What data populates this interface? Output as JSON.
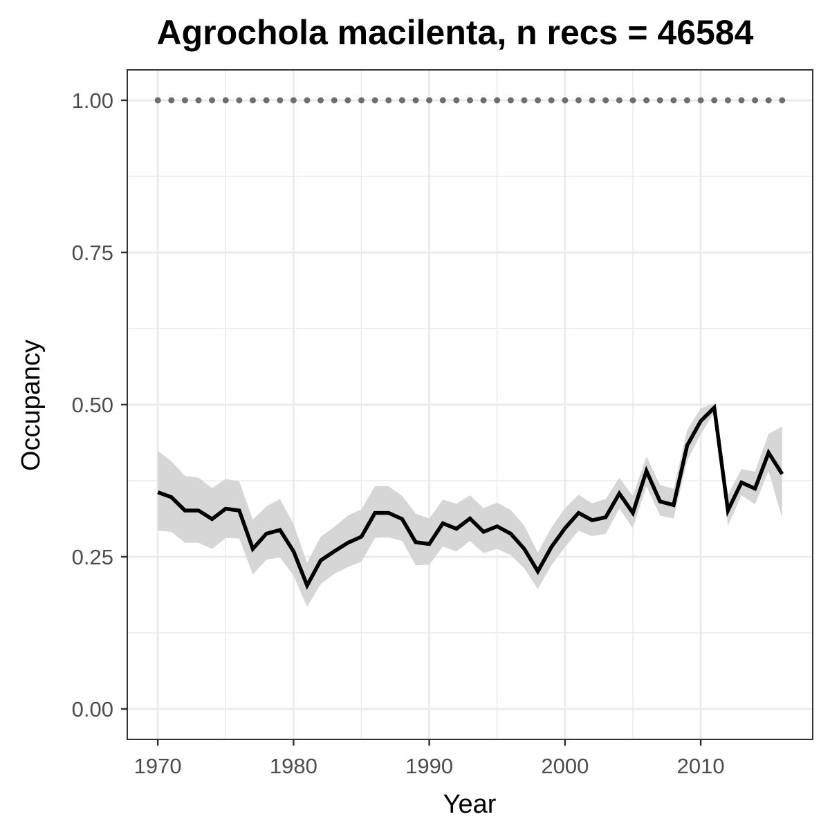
{
  "chart_data": {
    "type": "line",
    "title": "Agrochola macilenta, n recs = 46584",
    "xlabel": "Year",
    "ylabel": "Occupancy",
    "xlim": [
      1967.75,
      2018.25
    ],
    "ylim": [
      -0.05,
      1.05
    ],
    "x_ticks": [
      1970,
      1980,
      1990,
      2000,
      2010
    ],
    "x_tick_labels": [
      "1970",
      "1980",
      "1990",
      "2000",
      "2010"
    ],
    "y_ticks": [
      0.0,
      0.25,
      0.5,
      0.75,
      1.0
    ],
    "y_tick_labels": [
      "0.00",
      "0.25",
      "0.50",
      "0.75",
      "1.00"
    ],
    "grid": true,
    "legend": "none",
    "colors": {
      "line": "#000000",
      "ribbon": "#d6d6d6",
      "reference_points": "#6e6e6e",
      "grid": "#ebebeb",
      "panel_border": "#333333"
    },
    "x": [
      1970,
      1971,
      1972,
      1973,
      1974,
      1975,
      1976,
      1977,
      1978,
      1979,
      1980,
      1981,
      1982,
      1983,
      1984,
      1985,
      1986,
      1987,
      1988,
      1989,
      1990,
      1991,
      1992,
      1993,
      1994,
      1995,
      1996,
      1997,
      1998,
      1999,
      2000,
      2001,
      2002,
      2003,
      2004,
      2005,
      2006,
      2007,
      2008,
      2009,
      2010,
      2011,
      2012,
      2013,
      2014,
      2015,
      2016
    ],
    "series": [
      {
        "role": "mean",
        "values": [
          0.356,
          0.348,
          0.326,
          0.326,
          0.312,
          0.329,
          0.326,
          0.263,
          0.288,
          0.294,
          0.259,
          0.203,
          0.244,
          0.259,
          0.273,
          0.283,
          0.322,
          0.322,
          0.312,
          0.274,
          0.271,
          0.305,
          0.296,
          0.313,
          0.291,
          0.3,
          0.288,
          0.263,
          0.226,
          0.266,
          0.297,
          0.322,
          0.31,
          0.315,
          0.354,
          0.322,
          0.391,
          0.341,
          0.335,
          0.433,
          0.473,
          0.495,
          0.326,
          0.372,
          0.362,
          0.421,
          0.386
        ]
      },
      {
        "role": "upper",
        "values": [
          0.424,
          0.407,
          0.383,
          0.38,
          0.363,
          0.378,
          0.374,
          0.311,
          0.333,
          0.345,
          0.304,
          0.24,
          0.283,
          0.299,
          0.318,
          0.328,
          0.366,
          0.366,
          0.35,
          0.321,
          0.313,
          0.344,
          0.337,
          0.351,
          0.33,
          0.339,
          0.327,
          0.301,
          0.257,
          0.298,
          0.33,
          0.352,
          0.338,
          0.345,
          0.38,
          0.35,
          0.415,
          0.368,
          0.362,
          0.458,
          0.494,
          0.502,
          0.352,
          0.394,
          0.39,
          0.452,
          0.464
        ]
      },
      {
        "role": "lower",
        "values": [
          0.293,
          0.291,
          0.273,
          0.273,
          0.263,
          0.281,
          0.28,
          0.221,
          0.245,
          0.249,
          0.219,
          0.168,
          0.205,
          0.222,
          0.233,
          0.242,
          0.281,
          0.282,
          0.276,
          0.236,
          0.237,
          0.267,
          0.259,
          0.276,
          0.256,
          0.263,
          0.253,
          0.231,
          0.197,
          0.236,
          0.266,
          0.293,
          0.284,
          0.288,
          0.329,
          0.297,
          0.366,
          0.318,
          0.313,
          0.408,
          0.451,
          0.487,
          0.301,
          0.351,
          0.336,
          0.391,
          0.313
        ]
      },
      {
        "role": "reference",
        "values": [
          1,
          1,
          1,
          1,
          1,
          1,
          1,
          1,
          1,
          1,
          1,
          1,
          1,
          1,
          1,
          1,
          1,
          1,
          1,
          1,
          1,
          1,
          1,
          1,
          1,
          1,
          1,
          1,
          1,
          1,
          1,
          1,
          1,
          1,
          1,
          1,
          1,
          1,
          1,
          1,
          1,
          1,
          1,
          1,
          1,
          1,
          1
        ]
      }
    ]
  }
}
